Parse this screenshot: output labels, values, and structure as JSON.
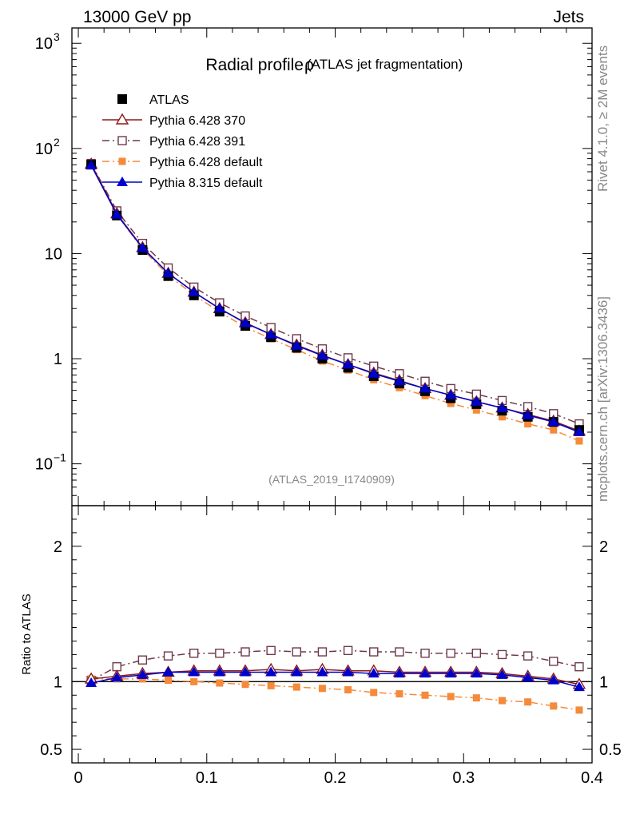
{
  "header": {
    "energy_label": "13000 GeV pp",
    "category_label": "Jets"
  },
  "side_labels": {
    "rivet": "Rivet 4.1.0, ≥ 2M events",
    "mcplots": "mcplots.cern.ch [arXiv:1306.3436]"
  },
  "chart_data": [
    {
      "type": "line",
      "panel": "main",
      "title": "Radial profile",
      "title_symbol": "ρ",
      "subtitle": "(ATLAS jet fragmentation)",
      "analysis_tag": "(ATLAS_2019_I1740909)",
      "yscale": "log",
      "xlim": [
        -0.005,
        0.4
      ],
      "ylim": [
        0.04,
        1400
      ],
      "ytick_labels": [
        {
          "value": 0.1,
          "base": "10",
          "exp": "−1"
        },
        {
          "value": 1,
          "base": "1",
          "exp": ""
        },
        {
          "value": 10,
          "base": "10",
          "exp": ""
        },
        {
          "value": 100,
          "base": "10",
          "exp": "2"
        },
        {
          "value": 1000,
          "base": "10",
          "exp": "3"
        }
      ],
      "x": [
        0.01,
        0.03,
        0.05,
        0.07,
        0.09,
        0.11,
        0.13,
        0.15,
        0.17,
        0.19,
        0.21,
        0.23,
        0.25,
        0.27,
        0.29,
        0.31,
        0.33,
        0.35,
        0.37,
        0.39
      ],
      "legend_position": "top-left",
      "series": [
        {
          "name": "ATLAS",
          "color": "#000000",
          "marker": "filled-square",
          "line": "none",
          "values": [
            70,
            23,
            10.8,
            6.1,
            4.0,
            2.8,
            2.05,
            1.6,
            1.27,
            1.0,
            0.82,
            0.68,
            0.58,
            0.49,
            0.42,
            0.37,
            0.32,
            0.28,
            0.25,
            0.21
          ]
        },
        {
          "name": "Pythia 6.428 370",
          "color": "#8b1a1a",
          "marker": "open-triangle",
          "line": "solid",
          "values": [
            71,
            24,
            11.4,
            6.5,
            4.3,
            3.0,
            2.2,
            1.7,
            1.35,
            1.08,
            0.88,
            0.73,
            0.62,
            0.52,
            0.45,
            0.39,
            0.34,
            0.295,
            0.255,
            0.205
          ]
        },
        {
          "name": "Pythia 6.428 391",
          "color": "#6e3a4a",
          "marker": "open-square",
          "line": "dashdot",
          "values": [
            72,
            25.5,
            12.5,
            7.3,
            4.8,
            3.4,
            2.55,
            1.98,
            1.55,
            1.24,
            1.02,
            0.85,
            0.72,
            0.61,
            0.52,
            0.46,
            0.4,
            0.35,
            0.3,
            0.24
          ]
        },
        {
          "name": "Pythia 6.428 default",
          "color": "#f58a3a",
          "marker": "filled-square-small",
          "line": "dashdot",
          "values": [
            71,
            23.5,
            11.0,
            6.2,
            4.05,
            2.78,
            2.0,
            1.55,
            1.22,
            0.95,
            0.78,
            0.63,
            0.53,
            0.445,
            0.375,
            0.325,
            0.28,
            0.24,
            0.21,
            0.165
          ]
        },
        {
          "name": "Pythia 8.315 default",
          "color": "#0000cc",
          "marker": "filled-triangle",
          "line": "solid",
          "values": [
            69,
            23.5,
            11.3,
            6.5,
            4.3,
            3.0,
            2.18,
            1.7,
            1.33,
            1.07,
            0.88,
            0.72,
            0.61,
            0.52,
            0.45,
            0.39,
            0.34,
            0.29,
            0.25,
            0.2
          ]
        }
      ]
    },
    {
      "type": "line",
      "panel": "ratio",
      "ylabel": "Ratio to ATLAS",
      "xlim": [
        -0.005,
        0.4
      ],
      "ylim": [
        0.4,
        2.3
      ],
      "ytick_labels": [
        "0.5",
        "1",
        "2"
      ],
      "ytick_values": [
        0.5,
        1,
        2
      ],
      "xtick_labels": [
        "0",
        "0.1",
        "0.2",
        "0.3",
        "0.4"
      ],
      "xtick_values": [
        0,
        0.1,
        0.2,
        0.3,
        0.4
      ],
      "x": [
        0.01,
        0.03,
        0.05,
        0.07,
        0.09,
        0.11,
        0.13,
        0.15,
        0.17,
        0.19,
        0.21,
        0.23,
        0.25,
        0.27,
        0.29,
        0.31,
        0.33,
        0.35,
        0.37,
        0.39
      ],
      "series": [
        {
          "name": "Pythia 6.428 370",
          "values": [
            1.02,
            1.04,
            1.06,
            1.07,
            1.08,
            1.08,
            1.08,
            1.09,
            1.08,
            1.09,
            1.08,
            1.08,
            1.07,
            1.07,
            1.07,
            1.07,
            1.06,
            1.04,
            1.02,
            0.98
          ]
        },
        {
          "name": "Pythia 6.428 391",
          "values": [
            1.01,
            1.11,
            1.16,
            1.19,
            1.21,
            1.21,
            1.22,
            1.23,
            1.22,
            1.22,
            1.23,
            1.22,
            1.22,
            1.21,
            1.21,
            1.21,
            1.2,
            1.19,
            1.15,
            1.11
          ]
        },
        {
          "name": "Pythia 6.428 default",
          "values": [
            1.02,
            1.02,
            1.02,
            1.01,
            1.0,
            0.99,
            0.98,
            0.97,
            0.96,
            0.95,
            0.94,
            0.92,
            0.91,
            0.9,
            0.89,
            0.88,
            0.86,
            0.85,
            0.82,
            0.79
          ]
        },
        {
          "name": "Pythia 8.315 default",
          "values": [
            0.99,
            1.03,
            1.05,
            1.07,
            1.07,
            1.07,
            1.07,
            1.07,
            1.07,
            1.07,
            1.07,
            1.06,
            1.06,
            1.06,
            1.06,
            1.06,
            1.05,
            1.03,
            1.01,
            0.96
          ]
        }
      ]
    }
  ]
}
